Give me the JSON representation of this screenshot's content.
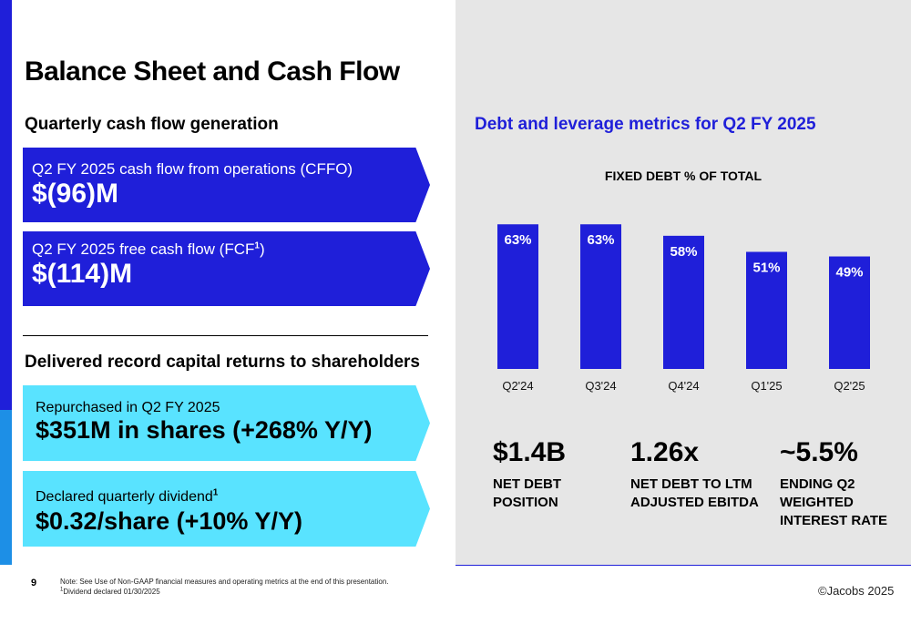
{
  "title": "Balance Sheet and Cash Flow",
  "left": {
    "cash_flow": {
      "heading": "Quarterly cash flow generation",
      "cffo_label": "Q2 FY 2025 cash flow from operations (CFFO)",
      "cffo_value": "$(96)M",
      "fcf_label": "Q2 FY 2025 free cash flow (FCF",
      "fcf_sup": "1",
      "fcf_label_end": ")",
      "fcf_value": "$(114)M"
    },
    "returns": {
      "heading": "Delivered record capital returns to shareholders",
      "repurchase_label": "Repurchased in Q2 FY 2025",
      "repurchase_value": "$351M in shares (+268% Y/Y)",
      "dividend_label": "Declared quarterly dividend",
      "dividend_sup": "1",
      "dividend_value": "$0.32/share (+10% Y/Y)"
    }
  },
  "right": {
    "heading": "Debt and leverage metrics for Q2 FY 2025",
    "metrics": [
      {
        "value": "$1.4B",
        "label": "NET DEBT\nPOSITION"
      },
      {
        "value": "1.26x",
        "label": "NET DEBT TO LTM\nADJUSTED EBITDA"
      },
      {
        "value": "~5.5%",
        "label": "ENDING Q2\nWEIGHTED\nINTEREST RATE"
      }
    ]
  },
  "chart_data": {
    "type": "bar",
    "title": "FIXED DEBT % OF TOTAL",
    "categories": [
      "Q2'24",
      "Q3'24",
      "Q4'24",
      "Q1'25",
      "Q2'25"
    ],
    "values": [
      63,
      63,
      58,
      51,
      49
    ],
    "data_labels": [
      "63%",
      "63%",
      "58%",
      "51%",
      "49%"
    ],
    "ylim": [
      0,
      100
    ],
    "grid": false,
    "bar_color": "#1f1fd9"
  },
  "footer": {
    "page_number": "9",
    "note_line1": "Note: See Use of Non-GAAP financial measures and operating metrics at the end of this presentation.",
    "note_sup": "1",
    "note_line2": "Dividend declared 01/30/2025",
    "copyright": "©Jacobs 2025"
  },
  "colors": {
    "brand_blue": "#1f1fd9",
    "light_cyan": "#59e3ff",
    "panel_gray": "#e6e6e6"
  }
}
